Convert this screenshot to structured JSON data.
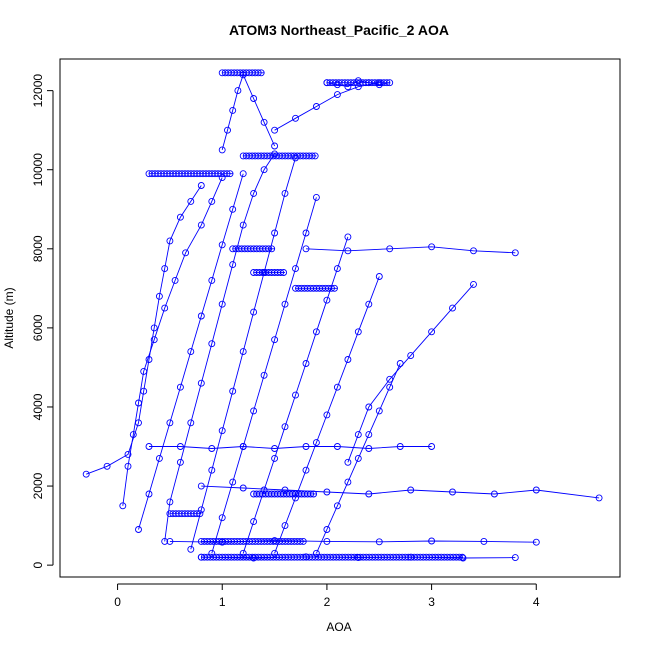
{
  "chart_data": {
    "type": "scatter",
    "title": "ATOM3 Northeast_Pacific_2 AOA",
    "xlabel": "AOA",
    "ylabel": "Altitude (m)",
    "xlim": [
      -0.55,
      4.8
    ],
    "ylim": [
      -300,
      12800
    ],
    "x_ticks": [
      0,
      1,
      2,
      3,
      4
    ],
    "y_ticks": [
      0,
      2000,
      4000,
      6000,
      8000,
      10000,
      12000
    ],
    "x_tick_labels": [
      "0",
      "1",
      "2",
      "3",
      "4"
    ],
    "y_tick_labels": [
      "0",
      "2000",
      "4000",
      "6000",
      "8000",
      "10000",
      "12000"
    ],
    "grid": false,
    "legend": "none",
    "marker": "open-circle",
    "color": "#0000ff",
    "series": [
      {
        "x": [
          -0.3,
          -0.1,
          0.1,
          0.2,
          0.25,
          0.3,
          0.35,
          0.4,
          0.45,
          0.5,
          0.6,
          0.7,
          0.8
        ],
        "y": [
          2300,
          2500,
          2800,
          3600,
          4400,
          5200,
          6000,
          6800,
          7500,
          8200,
          8800,
          9200,
          9600
        ]
      },
      {
        "x": [
          0.05,
          0.1,
          0.15,
          0.2,
          0.25,
          0.35,
          0.45,
          0.55,
          0.65,
          0.8,
          0.9,
          1.0
        ],
        "y": [
          1500,
          2500,
          3300,
          4100,
          4900,
          5700,
          6500,
          7200,
          7900,
          8600,
          9200,
          9800
        ]
      },
      {
        "x": [
          0.2,
          0.3,
          0.4,
          0.5,
          0.6,
          0.7,
          0.8,
          0.9,
          1.0,
          1.1,
          1.2
        ],
        "y": [
          900,
          1800,
          2700,
          3600,
          4500,
          5400,
          6300,
          7200,
          8100,
          9000,
          9900
        ]
      },
      {
        "x": [
          0.45,
          0.5,
          0.6,
          0.7,
          0.8,
          0.9,
          1.0,
          1.1,
          1.2,
          1.3,
          1.4,
          1.5
        ],
        "y": [
          600,
          1600,
          2600,
          3600,
          4600,
          5600,
          6600,
          7600,
          8600,
          9400,
          10000,
          10400
        ]
      },
      {
        "x": [
          0.7,
          0.8,
          0.9,
          1.0,
          1.1,
          1.2,
          1.3,
          1.4,
          1.5,
          1.6,
          1.7
        ],
        "y": [
          400,
          1400,
          2400,
          3400,
          4400,
          5400,
          6400,
          7400,
          8400,
          9400,
          10300
        ]
      },
      {
        "x": [
          0.9,
          1.0,
          1.1,
          1.2,
          1.3,
          1.4,
          1.5,
          1.6,
          1.7,
          1.8,
          1.9
        ],
        "y": [
          300,
          1200,
          2100,
          3000,
          3900,
          4800,
          5700,
          6600,
          7500,
          8400,
          9300
        ]
      },
      {
        "x": [
          1.2,
          1.3,
          1.4,
          1.5,
          1.6,
          1.7,
          1.8,
          1.9,
          2.0,
          2.1,
          2.2
        ],
        "y": [
          300,
          1100,
          1900,
          2700,
          3500,
          4300,
          5100,
          5900,
          6700,
          7500,
          8300
        ]
      },
      {
        "x": [
          1.5,
          1.6,
          1.7,
          1.8,
          1.9,
          2.0,
          2.1,
          2.2,
          2.3,
          2.4,
          2.5
        ],
        "y": [
          300,
          1000,
          1700,
          2400,
          3100,
          3800,
          4500,
          5200,
          5900,
          6600,
          7300
        ]
      },
      {
        "x": [
          1.9,
          2.0,
          2.1,
          2.2,
          2.3,
          2.4,
          2.5,
          2.6,
          2.7
        ],
        "y": [
          300,
          900,
          1500,
          2100,
          2700,
          3300,
          3900,
          4500,
          5100
        ]
      },
      {
        "x": [
          2.2,
          2.3,
          2.4,
          2.6,
          2.8,
          3.0,
          3.2,
          3.4
        ],
        "y": [
          2600,
          3300,
          4000,
          4700,
          5300,
          5900,
          6500,
          7100
        ]
      },
      {
        "x": [
          1.0,
          1.05,
          1.1,
          1.15,
          1.2,
          1.3,
          1.4,
          1.5
        ],
        "y": [
          10500,
          11000,
          11500,
          12000,
          12400,
          11800,
          11200,
          10600
        ]
      },
      {
        "x": [
          1.5,
          1.7,
          1.9,
          2.1,
          2.3,
          2.5
        ],
        "y": [
          11000,
          11300,
          11600,
          11900,
          12100,
          12200
        ]
      },
      {
        "x": [
          2.0,
          2.1,
          2.2,
          2.3,
          2.4,
          2.5,
          2.6
        ],
        "y": [
          12200,
          12150,
          12100,
          12250,
          12200,
          12150,
          12200
        ]
      },
      {
        "x": [
          0.3,
          0.6,
          0.9,
          1.2,
          1.5,
          1.8,
          2.1,
          2.4,
          2.7,
          3.0
        ],
        "y": [
          3000,
          3000,
          2950,
          3000,
          2950,
          3000,
          3000,
          2950,
          3000,
          3000
        ]
      },
      {
        "x": [
          0.8,
          1.2,
          1.6,
          2.0,
          2.4,
          2.8,
          3.2,
          3.6,
          4.0,
          4.6
        ],
        "y": [
          2000,
          1950,
          1900,
          1850,
          1800,
          1900,
          1850,
          1800,
          1900,
          1700
        ]
      },
      {
        "x": [
          0.5,
          1.0,
          1.5,
          2.0,
          2.5,
          3.0,
          3.5,
          4.0
        ],
        "y": [
          600,
          580,
          620,
          600,
          590,
          610,
          600,
          580
        ]
      },
      {
        "x": [
          0.8,
          1.3,
          1.8,
          2.3,
          2.8,
          3.3,
          3.8
        ],
        "y": [
          200,
          180,
          210,
          190,
          200,
          180,
          190
        ]
      },
      {
        "x": [
          1.8,
          2.2,
          2.6,
          3.0,
          3.4,
          3.8
        ],
        "y": [
          8000,
          7950,
          8000,
          8050,
          7950,
          7900
        ]
      }
    ],
    "clusters": [
      {
        "x_from": 0.3,
        "x_to": 1.1,
        "y": 9900
      },
      {
        "x_from": 1.0,
        "x_to": 1.4,
        "y": 12450
      },
      {
        "x_from": 1.2,
        "x_to": 1.9,
        "y": 10350
      },
      {
        "x_from": 2.0,
        "x_to": 2.6,
        "y": 12200
      },
      {
        "x_from": 1.1,
        "x_to": 1.5,
        "y": 8000
      },
      {
        "x_from": 1.3,
        "x_to": 1.6,
        "y": 7400
      },
      {
        "x_from": 1.7,
        "x_to": 2.1,
        "y": 7000
      },
      {
        "x_from": 1.3,
        "x_to": 1.9,
        "y": 1800
      },
      {
        "x_from": 0.5,
        "x_to": 0.8,
        "y": 1300
      },
      {
        "x_from": 0.8,
        "x_to": 1.8,
        "y": 600
      },
      {
        "x_from": 0.8,
        "x_to": 3.3,
        "y": 200
      }
    ]
  }
}
